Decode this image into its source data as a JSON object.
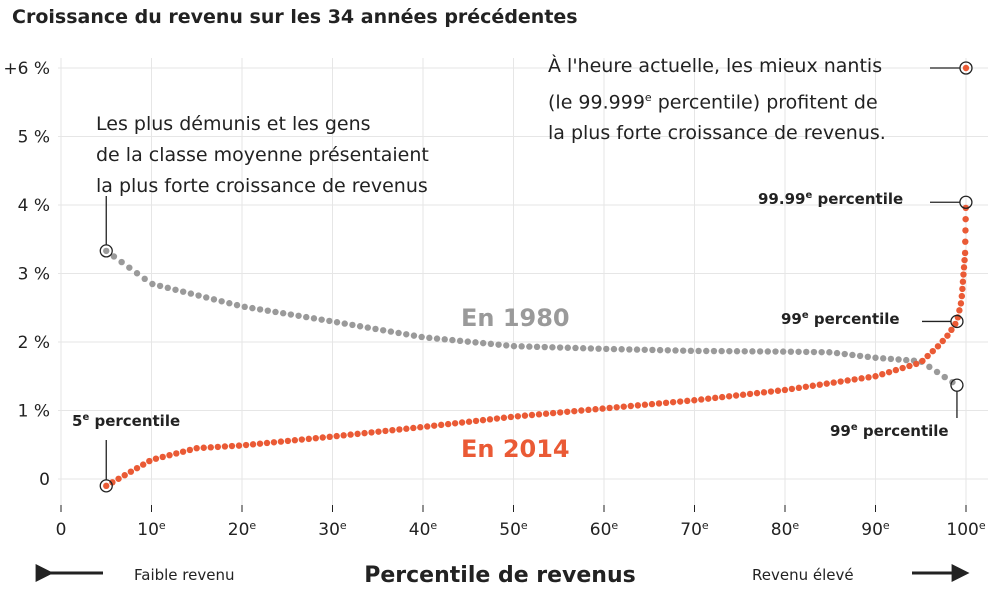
{
  "chart_data": {
    "type": "scatter",
    "title": "Croissance du revenu sur les 34 années précédentes",
    "xlabel": "Percentile de revenus",
    "xlim": [
      0,
      100
    ],
    "ylim": [
      -0.5,
      6.2
    ],
    "x_ticks": [
      {
        "x": 0,
        "label": "0",
        "sup": ""
      },
      {
        "x": 10,
        "label": "10",
        "sup": "e"
      },
      {
        "x": 20,
        "label": "20",
        "sup": "e"
      },
      {
        "x": 30,
        "label": "30",
        "sup": "e"
      },
      {
        "x": 40,
        "label": "40",
        "sup": "e"
      },
      {
        "x": 50,
        "label": "50",
        "sup": "e"
      },
      {
        "x": 60,
        "label": "60",
        "sup": "e"
      },
      {
        "x": 70,
        "label": "70",
        "sup": "e"
      },
      {
        "x": 80,
        "label": "80",
        "sup": "e"
      },
      {
        "x": 90,
        "label": "90",
        "sup": "e"
      },
      {
        "x": 100,
        "label": "100",
        "sup": "e"
      }
    ],
    "y_ticks": [
      {
        "y": 0,
        "label": "0"
      },
      {
        "y": 1,
        "label": "1 %"
      },
      {
        "y": 2,
        "label": "2 %"
      },
      {
        "y": 3,
        "label": "3 %"
      },
      {
        "y": 4,
        "label": "4 %"
      },
      {
        "y": 5,
        "label": "5 %"
      },
      {
        "y": 6,
        "label": "+6 %"
      }
    ],
    "series": [
      {
        "name": "En 1980",
        "color": "#9a9a9a",
        "x": [
          5,
          10,
          20,
          30,
          40,
          50,
          60,
          70,
          80,
          85,
          90,
          95,
          99
        ],
        "y": [
          3.33,
          2.85,
          2.52,
          2.3,
          2.07,
          1.94,
          1.9,
          1.87,
          1.86,
          1.85,
          1.77,
          1.72,
          1.37
        ]
      },
      {
        "name": "En 2014",
        "color": "#ea5a35",
        "x": [
          5,
          10,
          15,
          20,
          30,
          40,
          50,
          60,
          70,
          80,
          90,
          95,
          97,
          98,
          99,
          99.5,
          99.9,
          99.99,
          99.999
        ],
        "y": [
          -0.1,
          0.28,
          0.45,
          0.49,
          0.62,
          0.76,
          0.91,
          1.03,
          1.15,
          1.3,
          1.5,
          1.7,
          1.95,
          2.1,
          2.3,
          2.6,
          3.3,
          4.04,
          6.0
        ]
      }
    ]
  },
  "series_labels": {
    "s1980": "En 1980",
    "s2014": "En 2014"
  },
  "annotations": {
    "bottom_line1": "Les plus démunis et les gens",
    "bottom_line2": "de la classe moyenne présentaient",
    "bottom_line3": "la plus forte croissance de revenus",
    "top_line1": "À l'heure actuelle, les mieux nantis",
    "top_line2_a": "(le 99.999",
    "top_line2_sup": "e",
    "top_line2_b": " percentile) profitent de",
    "top_line3": "la plus forte croissance de revenus."
  },
  "point_labels": {
    "p5": "5",
    "p99_2014": "99",
    "p9999": "99.99",
    "p99_1980": "99",
    "sup": "e",
    "suffix": " percentile"
  },
  "axis_notes": {
    "low": "Faible revenu",
    "high": "Revenu élevé"
  },
  "colors": {
    "grid": "#e6e6e6",
    "axis": "#222222"
  }
}
